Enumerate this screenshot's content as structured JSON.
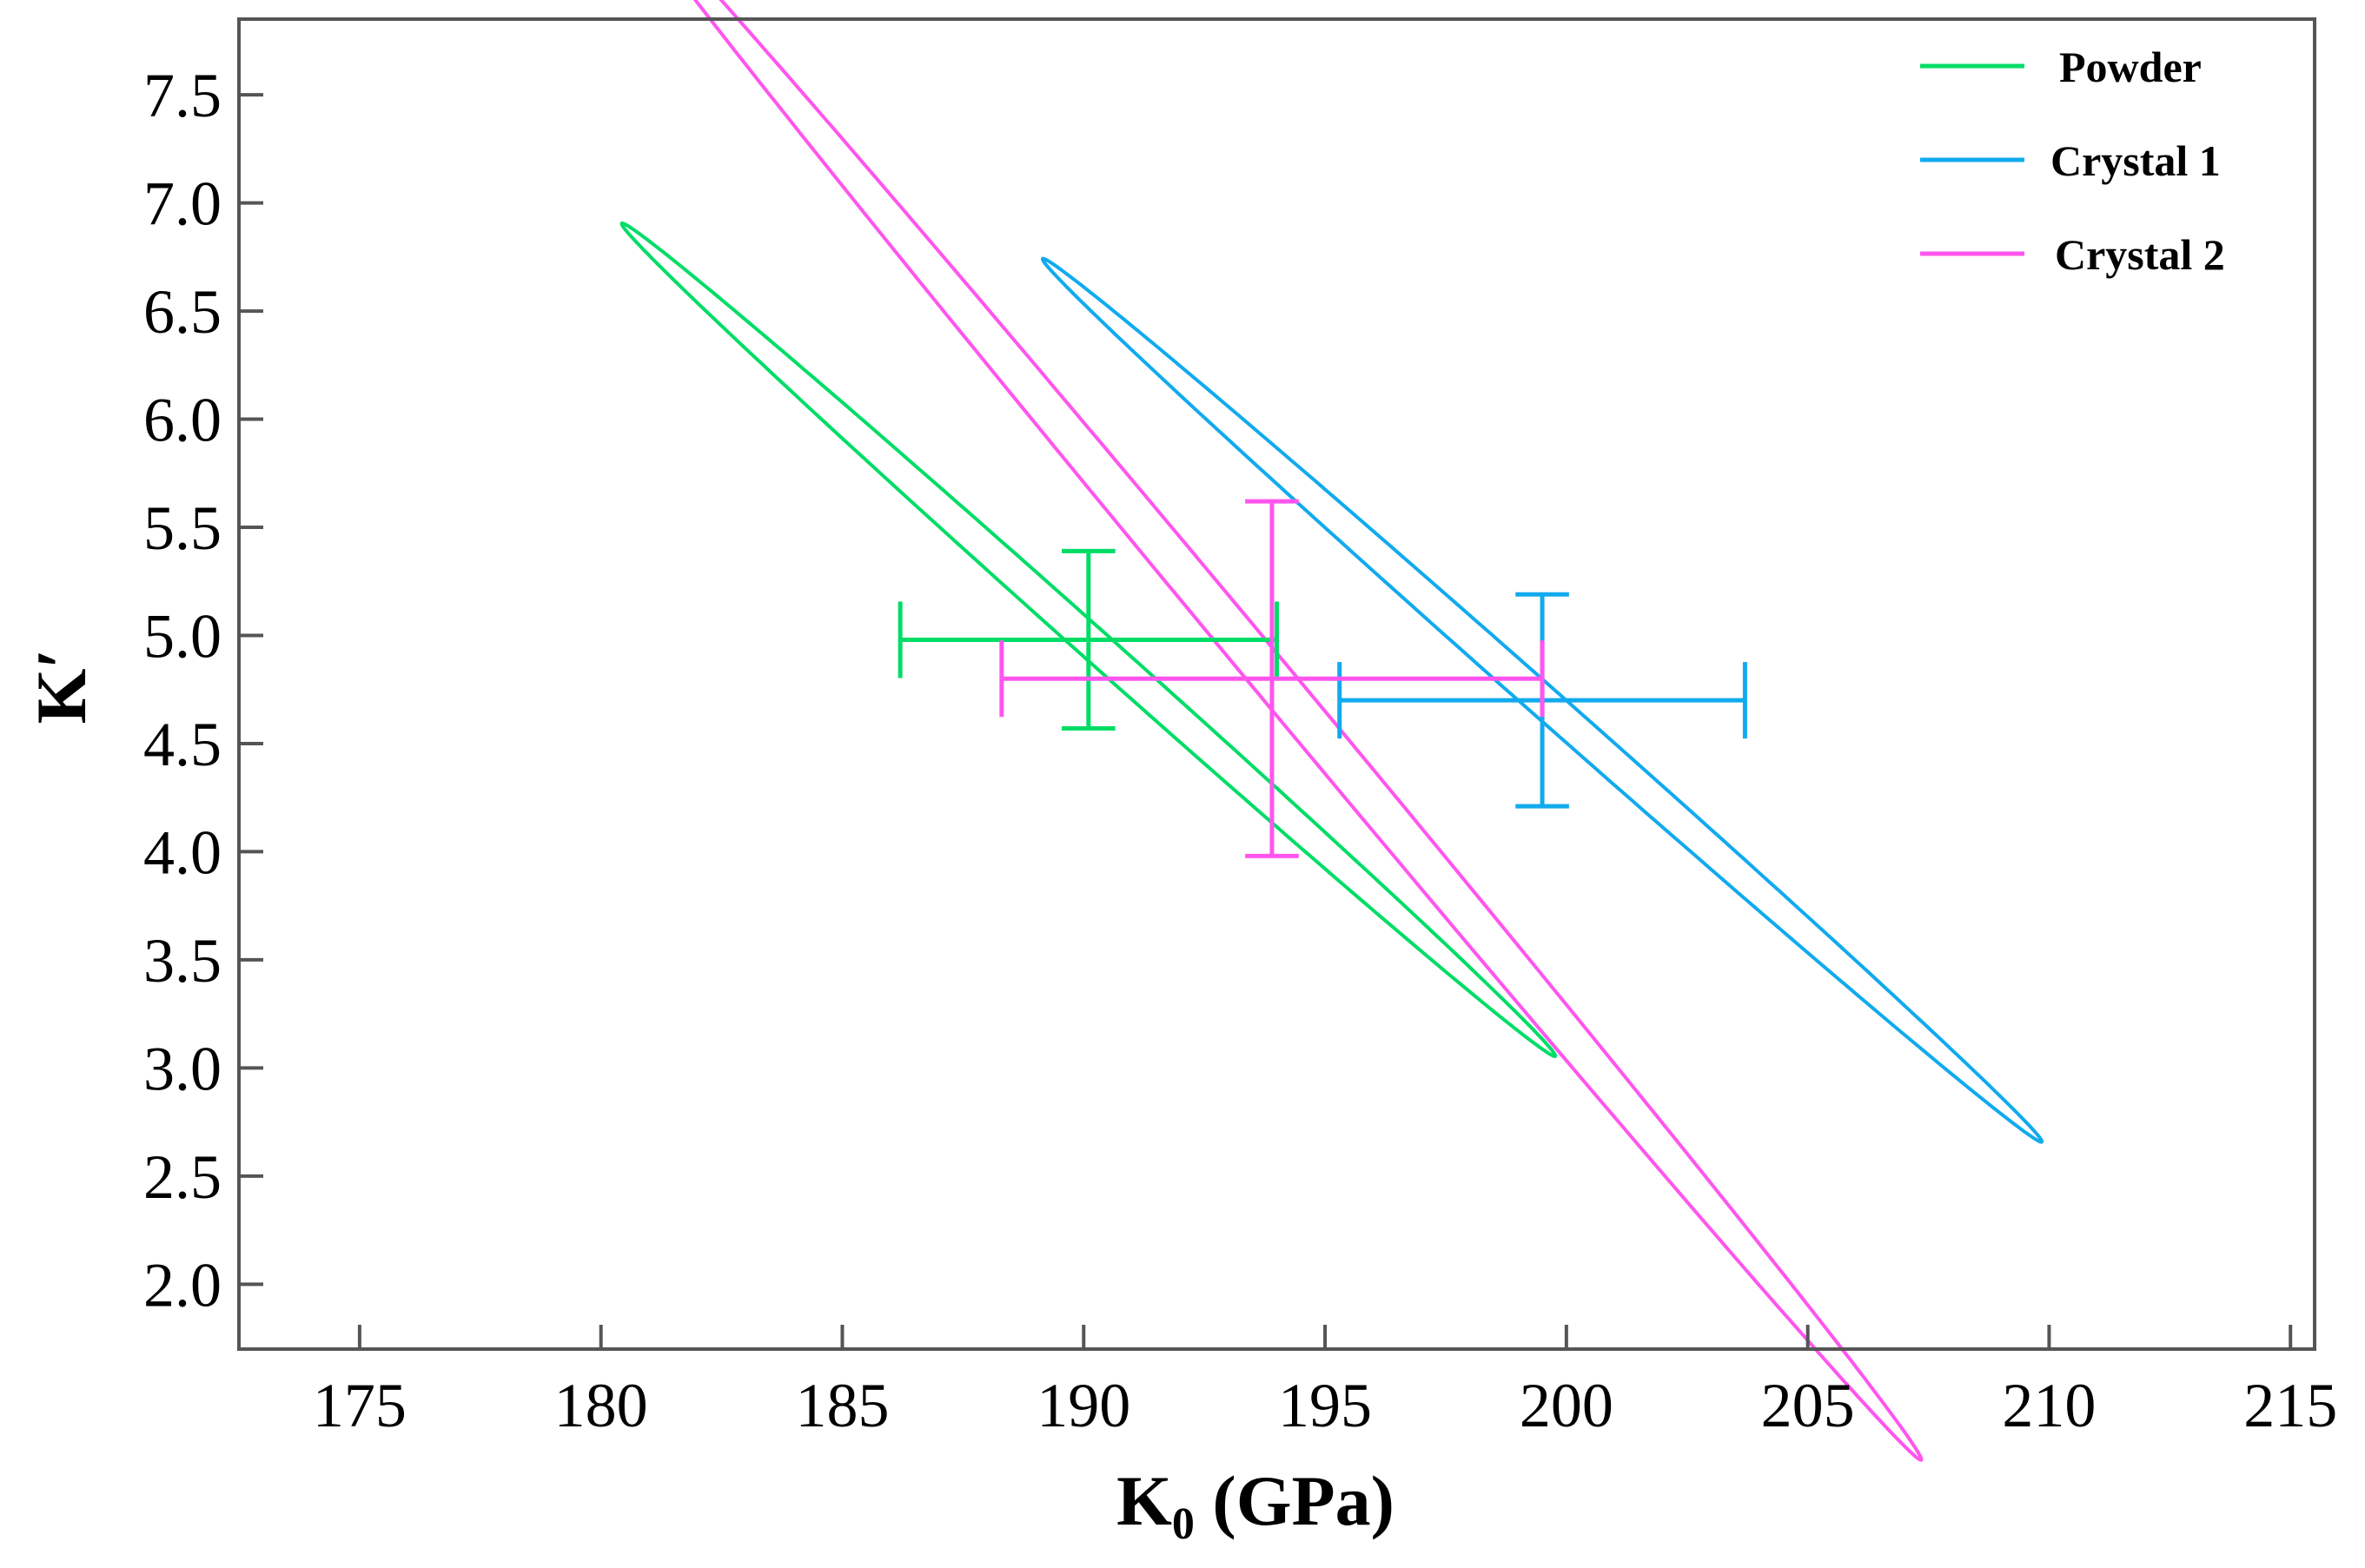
{
  "chart_data": {
    "type": "scatter",
    "title": "",
    "xlabel": "K",
    "xlabel_sub": "0",
    "xlabel_unit": " (GPa)",
    "ylabel": "K′",
    "xlim": [
      172.5,
      215.5
    ],
    "ylim": [
      1.7,
      7.85
    ],
    "xticks": [
      175,
      180,
      185,
      190,
      195,
      200,
      205,
      210,
      215
    ],
    "xtick_labels": [
      "175",
      "180",
      "185",
      "190",
      "195",
      "200",
      "205",
      "210",
      "215"
    ],
    "yticks": [
      2.0,
      2.5,
      3.0,
      3.5,
      4.0,
      4.5,
      5.0,
      5.5,
      6.0,
      6.5,
      7.0,
      7.5
    ],
    "ytick_labels": [
      "2.0",
      "2.5",
      "3.0",
      "3.5",
      "4.0",
      "4.5",
      "5.0",
      "5.5",
      "6.0",
      "6.5",
      "7.0",
      "7.5"
    ],
    "legend_position": "top-right",
    "series": [
      {
        "name": "Powder",
        "color": "#00dd66",
        "k0": 190.1,
        "k0_err": 3.9,
        "kprime": 4.98,
        "kprime_err": 0.41,
        "ellipse": {
          "center_k0": 190.1,
          "center_kprime": 4.98,
          "semi_major": 9.86,
          "semi_minor": 0.1,
          "angle_deg": -11.25
        }
      },
      {
        "name": "Crystal 1",
        "color": "#11aaee",
        "k0": 199.5,
        "k0_err": 4.2,
        "kprime": 4.7,
        "kprime_err": 0.49,
        "ellipse": {
          "center_k0": 199.5,
          "center_kprime": 4.7,
          "semi_major": 10.55,
          "semi_minor": 0.1,
          "angle_deg": -11.15
        }
      },
      {
        "name": "Crystal 2",
        "color": "#ff55ee",
        "k0": 193.9,
        "k0_err": 5.6,
        "kprime": 4.8,
        "kprime_err": 0.82,
        "ellipse": {
          "center_k0": 193.9,
          "center_kprime": 4.8,
          "semi_major": 13.93,
          "semi_minor": 0.15,
          "angle_deg": -15.02
        }
      }
    ]
  }
}
